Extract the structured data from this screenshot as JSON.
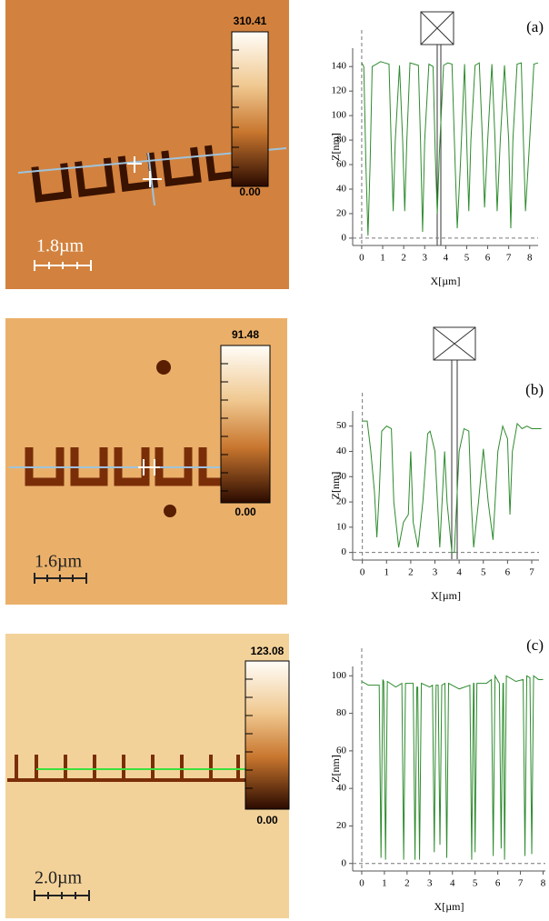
{
  "images": [
    {
      "colorbar_max": "310.41",
      "colorbar_min": "0.00",
      "scale_bar": "1.8µm"
    },
    {
      "colorbar_max": "91.48",
      "colorbar_min": "0.00",
      "scale_bar": "1.6µm"
    },
    {
      "colorbar_max": "123.08",
      "colorbar_min": "0.00",
      "scale_bar": "2.0µm"
    }
  ],
  "chart_data": [
    {
      "type": "line",
      "label": "(a)",
      "x_label": "X[µm]",
      "y_label": "Z[nm]",
      "xlim": [
        -0.43,
        8.4
      ],
      "ylim": [
        -6,
        155
      ],
      "xticks": [
        0,
        1,
        2,
        3,
        4,
        5,
        6,
        7,
        8
      ],
      "yticks": [
        0,
        20,
        40,
        60,
        80,
        100,
        120,
        140
      ],
      "color": "#2e8b2e",
      "x": [
        0,
        0.1,
        0.2,
        0.3,
        0.4,
        0.5,
        0.7,
        0.9,
        1.1,
        1.3,
        1.4,
        1.5,
        1.6,
        1.8,
        1.95,
        2.05,
        2.15,
        2.3,
        2.5,
        2.7,
        2.8,
        2.9,
        3.0,
        3.2,
        3.4,
        3.5,
        3.6,
        3.7,
        3.9,
        4.1,
        4.3,
        4.45,
        4.55,
        4.7,
        4.9,
        5.0,
        5.1,
        5.2,
        5.4,
        5.6,
        5.75,
        5.85,
        6.0,
        6.2,
        6.35,
        6.45,
        6.6,
        6.8,
        7.0,
        7.1,
        7.2,
        7.4,
        7.6,
        7.7,
        7.8,
        8.0,
        8.2,
        8.4
      ],
      "values": [
        143,
        140,
        60,
        2,
        60,
        140,
        142,
        144,
        143,
        142,
        80,
        22,
        80,
        141,
        80,
        22,
        80,
        143,
        142,
        141,
        80,
        5,
        80,
        142,
        140,
        70,
        20,
        70,
        141,
        143,
        142,
        60,
        8,
        60,
        142,
        80,
        22,
        80,
        141,
        143,
        80,
        25,
        80,
        142,
        80,
        22,
        80,
        141,
        80,
        8,
        80,
        142,
        143,
        80,
        22,
        80,
        142,
        143
      ]
    },
    {
      "type": "line",
      "label": "(b)",
      "x_label": "X[µm]",
      "y_label": "Z[nm]",
      "xlim": [
        -0.4,
        7.3
      ],
      "ylim": [
        -3,
        56
      ],
      "xticks": [
        0,
        1,
        2,
        3,
        4,
        5,
        6,
        7
      ],
      "yticks": [
        0,
        10,
        20,
        30,
        40,
        50
      ],
      "color": "#2e8b2e",
      "x": [
        0,
        0.2,
        0.35,
        0.5,
        0.6,
        0.7,
        0.8,
        1.0,
        1.2,
        1.3,
        1.5,
        1.7,
        1.9,
        2.0,
        2.1,
        2.3,
        2.5,
        2.7,
        2.8,
        3.0,
        3.2,
        3.4,
        3.5,
        3.6,
        3.7,
        3.8,
        4.0,
        4.2,
        4.4,
        4.5,
        4.6,
        4.8,
        5.0,
        5.2,
        5.4,
        5.6,
        5.8,
        6.0,
        6.1,
        6.2,
        6.4,
        6.6,
        6.8,
        7.0,
        7.2,
        7.4
      ],
      "values": [
        52,
        52,
        40,
        24,
        6,
        24,
        48,
        50,
        49,
        20,
        2,
        12,
        15,
        40,
        12,
        2,
        20,
        47,
        48,
        40,
        2,
        40,
        20,
        10,
        0,
        0,
        40,
        49,
        48,
        20,
        2,
        20,
        41,
        20,
        5,
        40,
        50,
        45,
        15,
        40,
        51,
        49,
        50,
        49,
        49,
        49
      ]
    },
    {
      "type": "line",
      "label": "(c)",
      "x_label": "X[µm]",
      "y_label": "Z[nm]",
      "xlim": [
        -0.4,
        8.1
      ],
      "ylim": [
        -4,
        105
      ],
      "xticks": [
        0,
        1,
        2,
        3,
        4,
        5,
        6,
        7,
        8
      ],
      "yticks": [
        0,
        20,
        40,
        60,
        80,
        100
      ],
      "color": "#2e8b2e",
      "x": [
        0,
        0.3,
        0.77,
        0.85,
        0.93,
        0.97,
        1.05,
        1.13,
        1.5,
        1.77,
        1.85,
        1.93,
        2.27,
        2.35,
        2.43,
        2.47,
        2.55,
        2.63,
        3.0,
        3.12,
        3.2,
        3.28,
        3.37,
        3.45,
        3.53,
        3.67,
        3.75,
        3.83,
        4.3,
        4.77,
        4.85,
        4.93,
        4.95,
        5.0,
        5.08,
        5.5,
        5.72,
        5.8,
        5.88,
        6.07,
        6.15,
        6.23,
        6.25,
        6.3,
        6.38,
        6.8,
        7.12,
        7.2,
        7.28,
        7.42,
        7.5,
        7.58,
        7.8,
        8.0
      ],
      "values": [
        97,
        95,
        95,
        3,
        98,
        97,
        2,
        97,
        94,
        96,
        2,
        96,
        96,
        2,
        94,
        94,
        2,
        96,
        94,
        95,
        6,
        95,
        95,
        10,
        95,
        96,
        3,
        96,
        93,
        95,
        2,
        96,
        96,
        6,
        96,
        96,
        98,
        4,
        100,
        96,
        8,
        96,
        96,
        2,
        100,
        97,
        98,
        4,
        100,
        99,
        5,
        100,
        98,
        98
      ]
    }
  ]
}
